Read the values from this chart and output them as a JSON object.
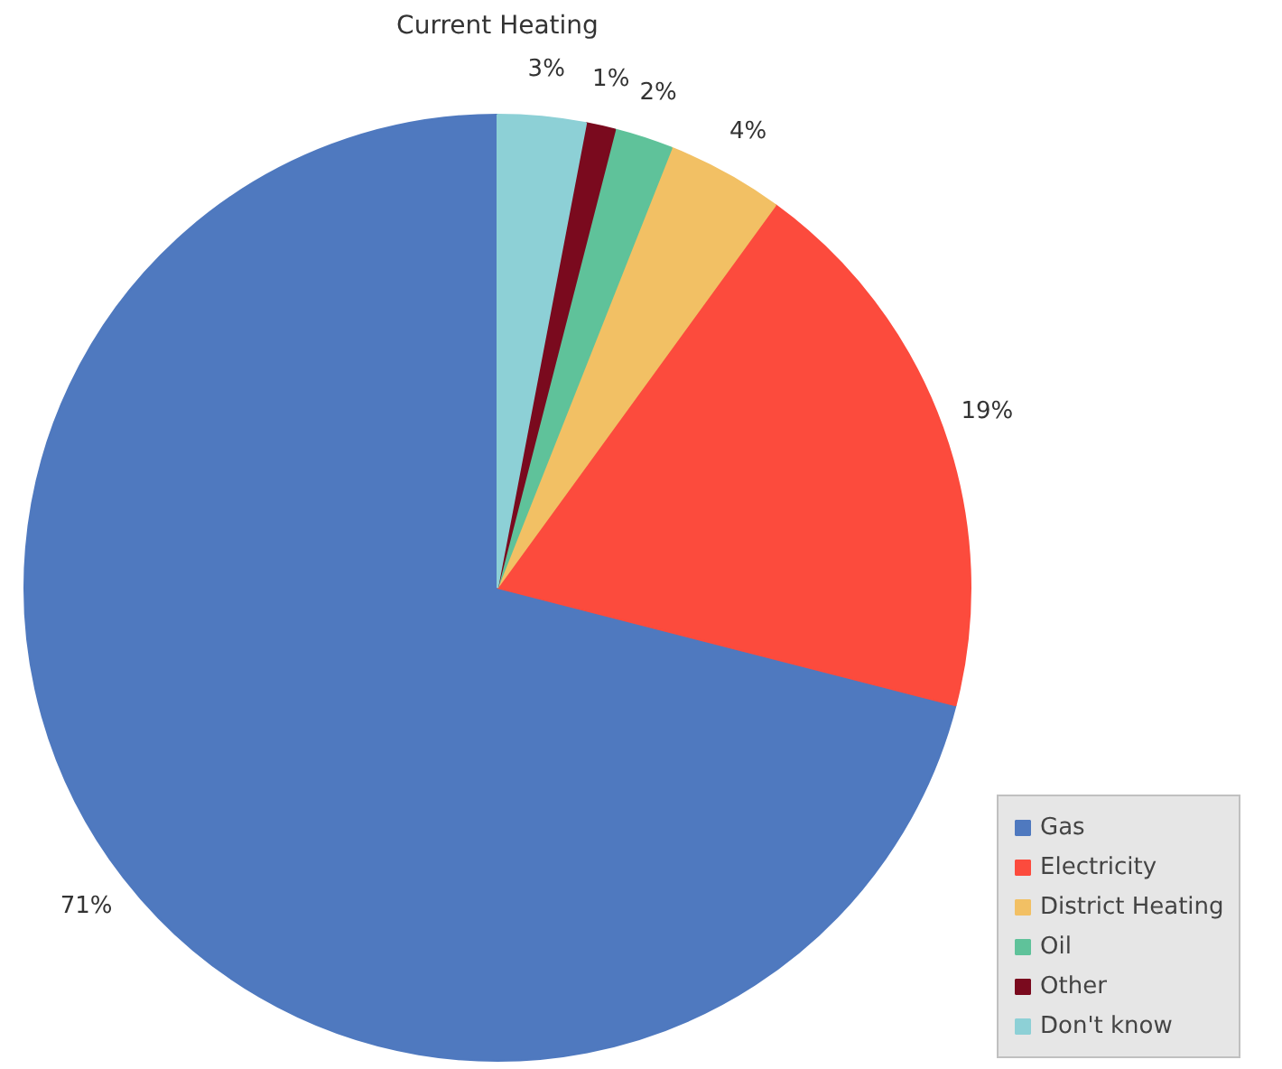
{
  "chart_data": {
    "type": "pie",
    "title": "Current Heating",
    "categories": [
      "Gas",
      "Electricity",
      "District Heating",
      "Oil",
      "Other",
      "Don't know"
    ],
    "values": [
      71,
      19,
      4,
      2,
      1,
      3
    ],
    "colors": [
      "#4f79bf",
      "#fc4b3d",
      "#f2c064",
      "#5fc29a",
      "#7a0a1e",
      "#8dd0d6"
    ],
    "value_labels": [
      "71%",
      "19%",
      "4%",
      "2%",
      "1%",
      "3%"
    ],
    "legend": "bottom right"
  }
}
